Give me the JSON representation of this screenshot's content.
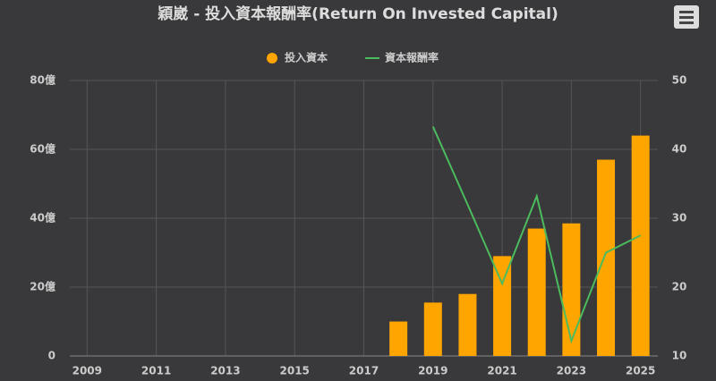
{
  "chart_data": {
    "type": "bar-line",
    "title": "穎崴 - 投入資本報酬率(Return On Invested Capital)",
    "x": [
      2018,
      2019,
      2020,
      2021,
      2022,
      2023,
      2024,
      2025
    ],
    "series": [
      {
        "name": "投入資本",
        "type": "bar",
        "color": "#ffa500",
        "values": [
          10,
          15.5,
          18,
          29,
          37,
          38.5,
          57,
          64
        ]
      },
      {
        "name": "資本報酬率",
        "type": "line",
        "axis": "y2",
        "color": "#4cbb5d",
        "values": [
          null,
          43.3,
          32,
          20.5,
          33.2,
          12.2,
          25,
          27.5
        ]
      }
    ],
    "xlim": [
      2008.5,
      2025.5
    ],
    "xticks": [
      2009,
      2011,
      2013,
      2015,
      2017,
      2019,
      2021,
      2023,
      2025
    ],
    "ylim": [
      0,
      80
    ],
    "yticks": [
      0,
      {
        "value": 20,
        "label": "20億"
      },
      {
        "value": 40,
        "label": "40億"
      },
      {
        "value": 60,
        "label": "60億"
      },
      {
        "value": 80,
        "label": "80億"
      }
    ],
    "y2lim": [
      10,
      50
    ],
    "y2ticks": [
      10,
      20,
      30,
      40,
      50
    ],
    "grid": true,
    "legend": "top"
  }
}
